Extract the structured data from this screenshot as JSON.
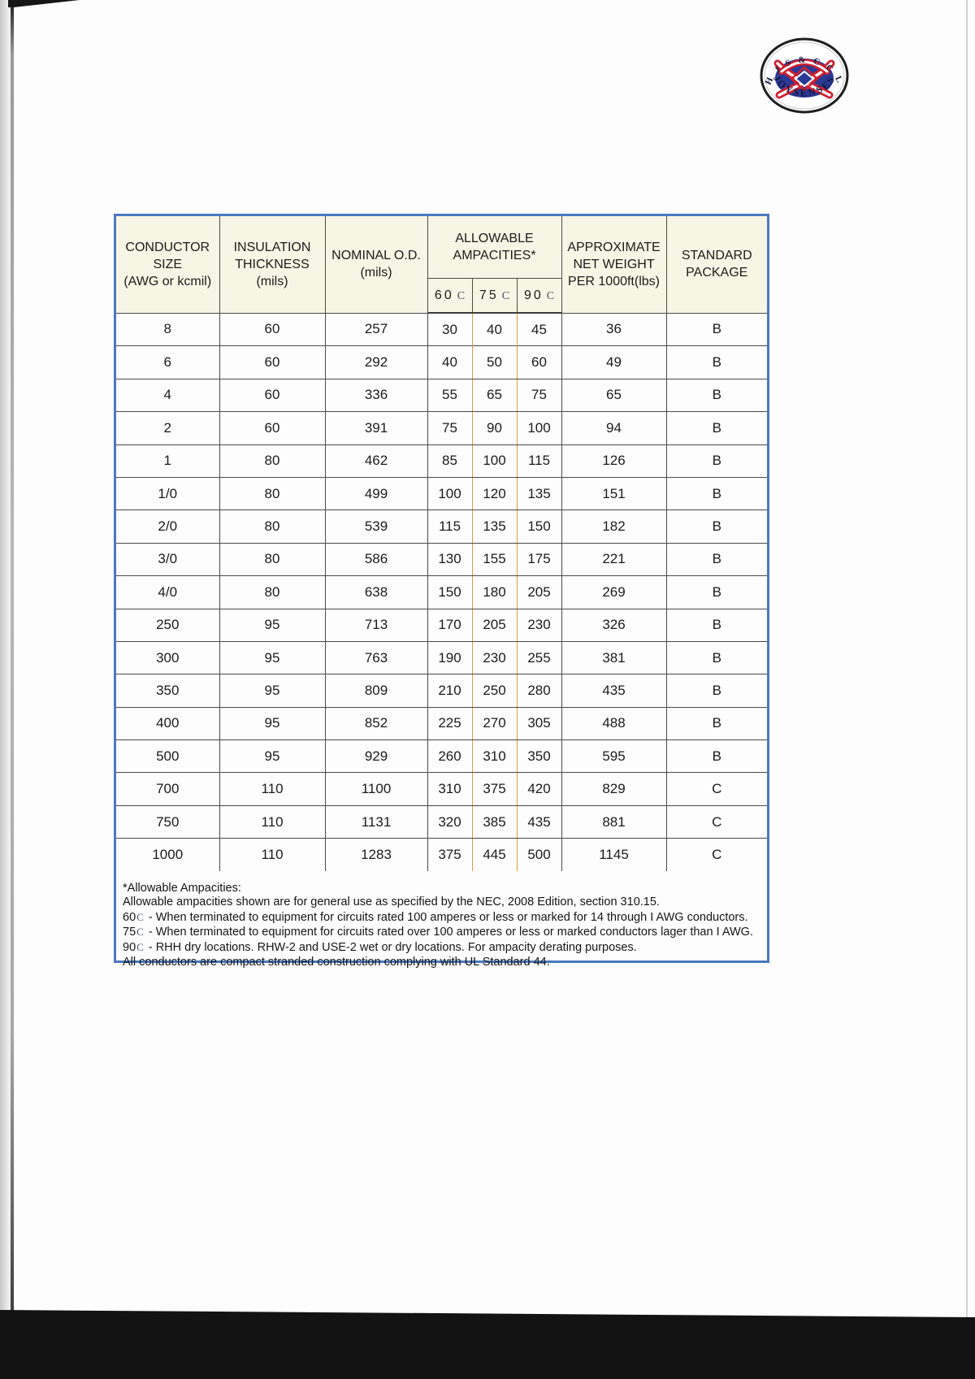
{
  "logo": {
    "arc_text": "H J S & C C L",
    "name": "JOYSENSES",
    "colors": {
      "ring": "#1f1f1f",
      "blue": "#2b3a96",
      "red": "#cf2030"
    }
  },
  "table": {
    "border_color": "#4b79c0",
    "accent_line_color": "#dd9a3f",
    "header_bg": "#f7f5e3",
    "headers": {
      "conductor_size": "CONDUCTOR\nSIZE\n(AWG or kcmil)",
      "insulation": "INSULATION\nTHICKNESS\n(mils)",
      "nominal_od": "NOMINAL O.D.\n(mils)",
      "ampacities": "ALLOWABLE\nAMPACITIES*",
      "temps": [
        {
          "num": "60",
          "unit": "C"
        },
        {
          "num": "75",
          "unit": "C"
        },
        {
          "num": "90",
          "unit": "C"
        }
      ],
      "weight": "APPROXIMATE\nNET WEIGHT\nPER 1000ft(lbs)",
      "package": "STANDARD\nPACKAGE"
    },
    "rows": [
      [
        "8",
        "60",
        "257",
        "30",
        "40",
        "45",
        "36",
        "B"
      ],
      [
        "6",
        "60",
        "292",
        "40",
        "50",
        "60",
        "49",
        "B"
      ],
      [
        "4",
        "60",
        "336",
        "55",
        "65",
        "75",
        "65",
        "B"
      ],
      [
        "2",
        "60",
        "391",
        "75",
        "90",
        "100",
        "94",
        "B"
      ],
      [
        "1",
        "80",
        "462",
        "85",
        "100",
        "115",
        "126",
        "B"
      ],
      [
        "1/0",
        "80",
        "499",
        "100",
        "120",
        "135",
        "151",
        "B"
      ],
      [
        "2/0",
        "80",
        "539",
        "115",
        "135",
        "150",
        "182",
        "B"
      ],
      [
        "3/0",
        "80",
        "586",
        "130",
        "155",
        "175",
        "221",
        "B"
      ],
      [
        "4/0",
        "80",
        "638",
        "150",
        "180",
        "205",
        "269",
        "B"
      ],
      [
        "250",
        "95",
        "713",
        "170",
        "205",
        "230",
        "326",
        "B"
      ],
      [
        "300",
        "95",
        "763",
        "190",
        "230",
        "255",
        "381",
        "B"
      ],
      [
        "350",
        "95",
        "809",
        "210",
        "250",
        "280",
        "435",
        "B"
      ],
      [
        "400",
        "95",
        "852",
        "225",
        "270",
        "305",
        "488",
        "B"
      ],
      [
        "500",
        "95",
        "929",
        "260",
        "310",
        "350",
        "595",
        "B"
      ],
      [
        "700",
        "110",
        "1100",
        "310",
        "375",
        "420",
        "829",
        "C"
      ],
      [
        "750",
        "110",
        "1131",
        "320",
        "385",
        "435",
        "881",
        "C"
      ],
      [
        "1000",
        "110",
        "1283",
        "375",
        "445",
        "500",
        "1145",
        "C"
      ]
    ]
  },
  "notes": {
    "title": "*Allowable Ampacities:",
    "general": "Allowable ampacities shown are for general use as specified by the NEC, 2008 Edition, section 310.15.",
    "temp_notes": [
      {
        "temp": "60",
        "unit": "C",
        "text": "- When terminated to equipment for circuits rated 100 amperes or less or marked for 14 through I AWG conductors."
      },
      {
        "temp": "75",
        "unit": "C",
        "text": "- When terminated to equipment for circuits rated over 100 amperes or less or marked conductors lager than I AWG."
      },
      {
        "temp": "90",
        "unit": "C",
        "text": "- RHH dry locations. RHW-2 and USE-2 wet or dry locations. For ampacity derating purposes."
      }
    ],
    "footer": "All conductors are compact stranded construction complying with UL Standard 44."
  }
}
